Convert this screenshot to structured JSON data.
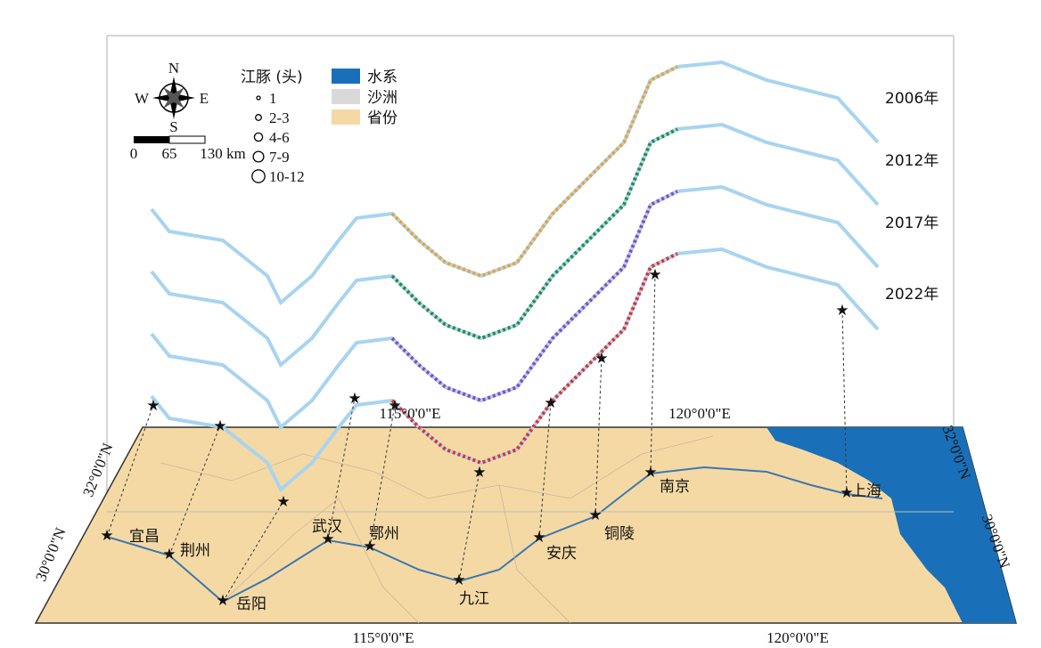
{
  "compass": {
    "n": "N",
    "s": "S",
    "w": "W",
    "e": "E"
  },
  "scale_bar": {
    "labels": [
      "0",
      "65",
      "130 km"
    ]
  },
  "dolphin_legend": {
    "title": "江豚 (头)",
    "sizes": [
      "1",
      "2-3",
      "4-6",
      "7-9",
      "10-12"
    ]
  },
  "map_legend": [
    "水系",
    "沙洲",
    "省份"
  ],
  "years": [
    "2006年",
    "2012年",
    "2017年",
    "2022年"
  ],
  "coordinates": {
    "top": [
      "115°0'0\"E",
      "120°0'0\"E"
    ],
    "bottom": [
      "115°0'0\"E",
      "120°0'0\"E"
    ],
    "left": [
      "32°0'0\"N",
      "30°0'0\"N"
    ],
    "right": [
      "32°0'0\"N",
      "30°0'0\"N"
    ]
  },
  "cities": [
    "宜昌",
    "荆州",
    "岳阳",
    "武汉",
    "鄂州",
    "九江",
    "安庆",
    "铜陵",
    "南京",
    "上海"
  ]
}
